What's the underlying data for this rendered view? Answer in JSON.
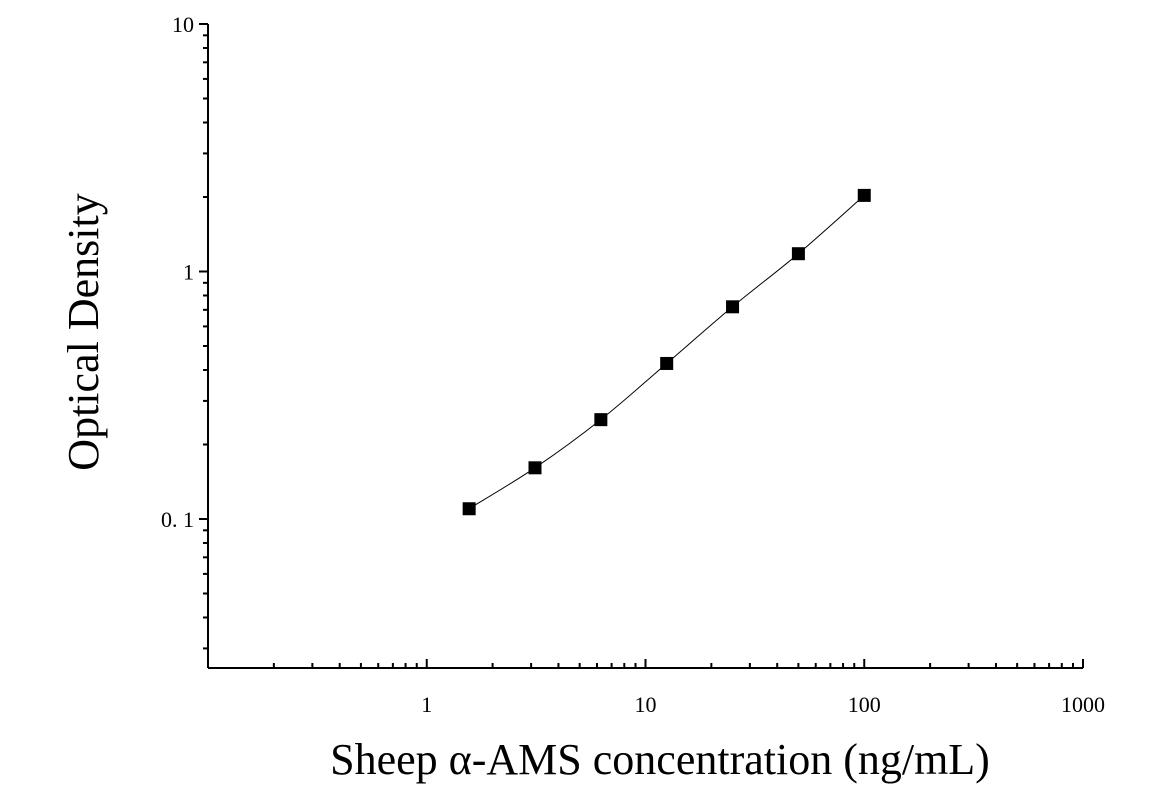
{
  "chart_data": {
    "type": "scatter",
    "xlabel": "Sheep α-AMS concentration (ng/mL)",
    "ylabel": "Optical Density",
    "x_scale": "log",
    "y_scale": "log",
    "xlim": [
      0.1,
      1000
    ],
    "ylim": [
      0.025,
      10
    ],
    "x_ticks": [
      1,
      10,
      100,
      1000
    ],
    "x_tick_labels": [
      "1",
      "10",
      "100",
      "1000"
    ],
    "y_ticks": [
      0.1,
      1,
      10
    ],
    "y_tick_labels": [
      "0. 1",
      "1",
      "10"
    ],
    "grid": false,
    "legend": "none",
    "marker": "square",
    "fit_line": true,
    "color": "#000000",
    "series": [
      {
        "x": [
          1.5625,
          3.125,
          6.25,
          12.5,
          25,
          50,
          100
        ],
        "y": [
          0.11,
          0.161,
          0.252,
          0.425,
          0.72,
          1.18,
          2.03
        ]
      }
    ]
  }
}
